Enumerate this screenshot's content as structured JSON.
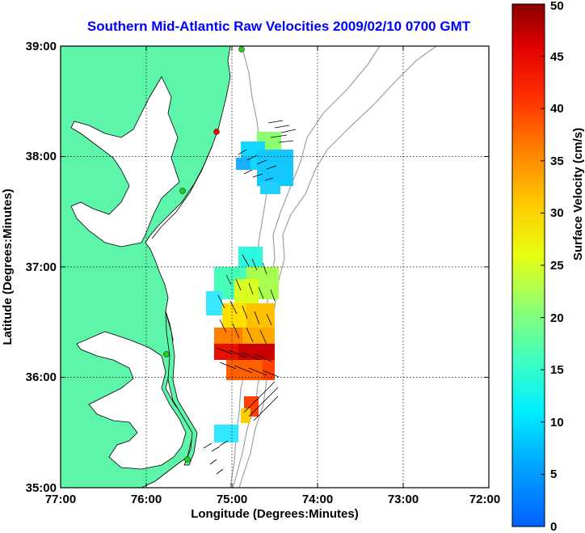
{
  "title": "Southern Mid-Atlantic Raw Velocities 2009/02/10 0700 GMT",
  "x_axis": {
    "label": "Longitude (Degrees:Minutes)",
    "ticks": [
      "77:00",
      "76:00",
      "75:00",
      "74:00",
      "73:00",
      "72:00"
    ]
  },
  "y_axis": {
    "label": "Latitude (Degrees:Minutes)",
    "ticks": [
      "39:00",
      "38:00",
      "37:00",
      "36:00",
      "35:00"
    ]
  },
  "colorbar": {
    "label": "Surface Velocity (cm/s)",
    "ticks": [
      "0",
      "5",
      "10",
      "15",
      "20",
      "25",
      "30",
      "35",
      "40",
      "45",
      "50"
    ],
    "colormap": "jet"
  },
  "colors": {
    "land": "#5cf5aa",
    "coast": "#000000",
    "bathymetry": "#a0a0a0",
    "title": "#0000ff",
    "station_active": "#22cc22",
    "station_inactive": "#ff0000"
  }
}
